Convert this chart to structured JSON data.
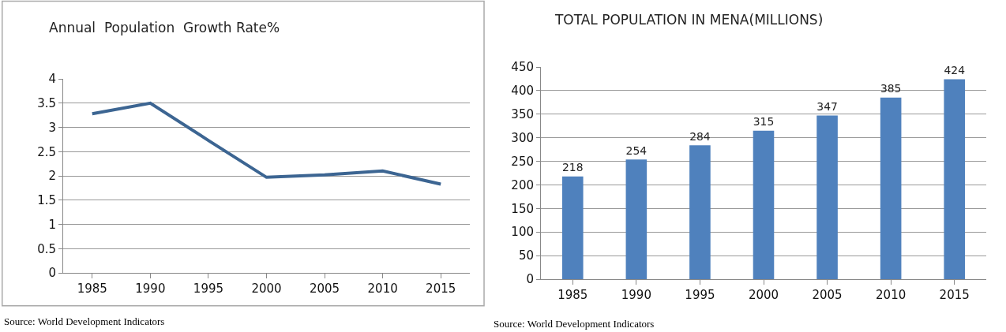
{
  "chart_data": [
    {
      "type": "line",
      "title": "Annual  Population  Growth Rate%",
      "categories": [
        "1985",
        "1990",
        "1995",
        "2000",
        "2005",
        "2010",
        "2015"
      ],
      "series": [
        {
          "color": "#3c6592",
          "values": [
            3.28,
            3.5,
            2.73,
            1.97,
            2.02,
            2.1,
            1.83
          ]
        }
      ],
      "ylim": [
        0,
        4
      ],
      "yticks": [
        0,
        0.5,
        1,
        1.5,
        2,
        2.5,
        3,
        3.5,
        4
      ],
      "grid": "y",
      "marker": "none",
      "line_style": "solid",
      "annotations": [
        "Source: World Development Indicators"
      ]
    },
    {
      "type": "bar",
      "title": "TOTAL POPULATION IN MENA(MILLIONS)",
      "categories": [
        "1985",
        "1990",
        "1995",
        "2000",
        "2005",
        "2010",
        "2015"
      ],
      "series": [
        {
          "color": "#4f81bd",
          "values": [
            218,
            254,
            284,
            315,
            347,
            385,
            424
          ]
        }
      ],
      "ylim": [
        0,
        450
      ],
      "yticks": [
        0,
        50,
        100,
        150,
        200,
        250,
        300,
        350,
        400,
        450
      ],
      "grid": "y",
      "data_labels": true,
      "annotations": [
        "Source: World Development Indicators"
      ]
    }
  ]
}
